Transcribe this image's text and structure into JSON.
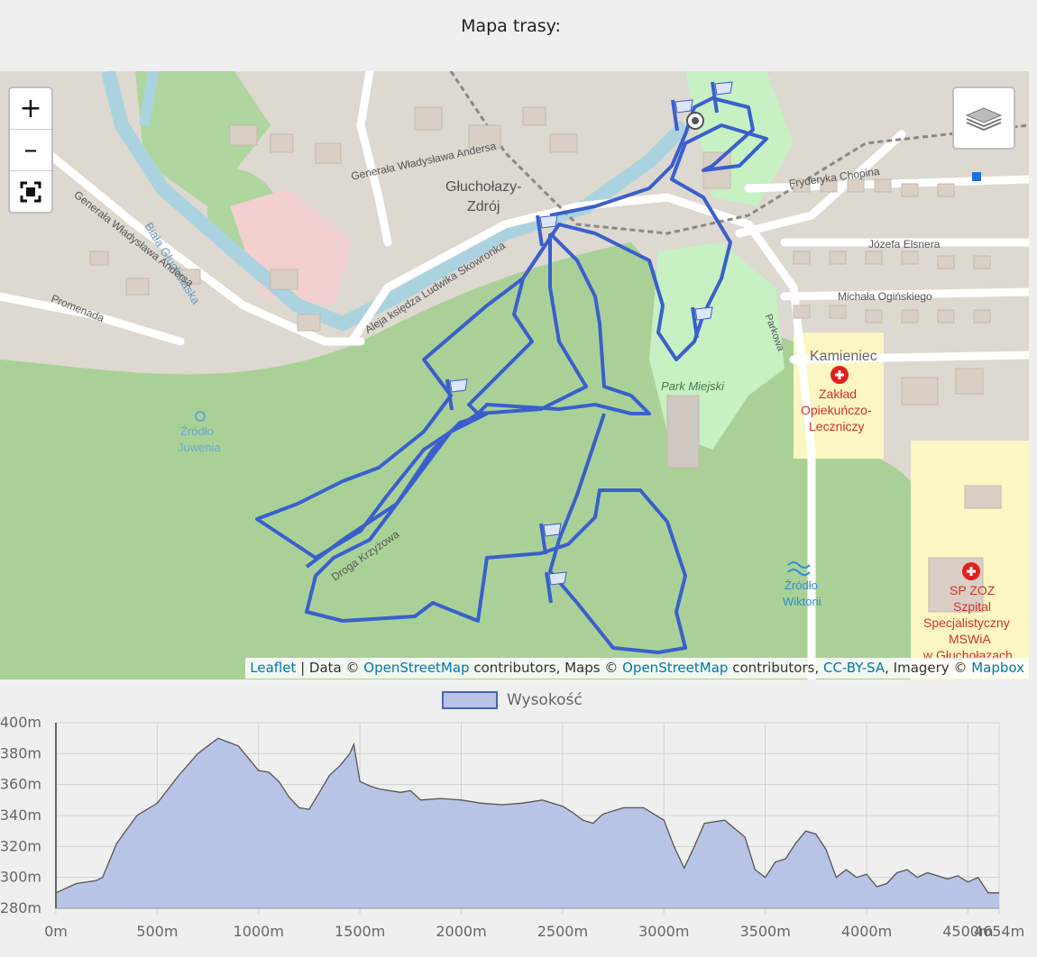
{
  "title": "Mapa trasy:",
  "map": {
    "controls": {
      "zoom_in": "+",
      "zoom_out": "–",
      "fullscreen_icon": "fullscreen-icon",
      "layers_icon": "layers-icon"
    },
    "labels": {
      "town": "Głuchołazy-",
      "town2": "Zdrój",
      "river": "Biała Głuchołaska",
      "park": "Park Miejski",
      "spring1": "Źródło",
      "spring1b": "Juwenia",
      "spring2": "Źródło",
      "spring2b": "Wiktorii",
      "kamieniec": "Kamieniec",
      "zaklad1": "Zakład",
      "zaklad2": "Opiekuńczo-",
      "zaklad3": "Leczniczy",
      "szpital1": "SP ZOZ",
      "szpital2": "Szpital",
      "szpital3": "Specjalistyczny",
      "szpital4": "MSWiA",
      "szpital5": "w Głuchołazach",
      "street1": "Generała Władysława Andersa",
      "street1b": "Generała Władysława Andersa",
      "street2": "Aleja księdza Ludwika Skowronka",
      "street3": "Fryderyka Chopina",
      "street4": "Józefa Elsnera",
      "street5": "Michała Ogińskiego",
      "street6": "Parkowa",
      "street7": "Promenada",
      "street8": "Droga Krzyżowa"
    },
    "attribution": {
      "leaflet": "Leaflet",
      "sep1": " | Data © ",
      "osm1": "OpenStreetMap",
      "mid": " contributors, Maps © ",
      "osm2": "OpenStreetMap",
      "mid2": " contributors, ",
      "license": "CC-BY-SA",
      "imagery": ", Imagery © ",
      "mapbox": "Mapbox"
    }
  },
  "colors": {
    "route": "#3a5fcd",
    "forest": "#a8d196",
    "elevation_fill": "#b7c4e6",
    "elevation_line": "#555"
  },
  "chart_data": {
    "type": "area",
    "legend": "Wysokość",
    "legend_position": "top",
    "ylim": [
      280,
      400
    ],
    "yticks": [
      "280m",
      "300m",
      "320m",
      "340m",
      "360m",
      "380m",
      "400m"
    ],
    "xlim": [
      0,
      4654
    ],
    "xticks": [
      "0m",
      "500m",
      "1000m",
      "1500m",
      "2000m",
      "2500m",
      "3000m",
      "3500m",
      "4000m",
      "4500m",
      "4654m"
    ],
    "grid": true,
    "series": [
      {
        "name": "Wysokość",
        "x": [
          0,
          100,
          200,
          230,
          300,
          400,
          500,
          600,
          700,
          800,
          900,
          1000,
          1050,
          1100,
          1150,
          1200,
          1250,
          1300,
          1350,
          1400,
          1450,
          1470,
          1500,
          1550,
          1600,
          1700,
          1750,
          1800,
          1900,
          2000,
          2100,
          2200,
          2300,
          2400,
          2500,
          2550,
          2600,
          2650,
          2700,
          2800,
          2900,
          3000,
          3050,
          3100,
          3150,
          3200,
          3300,
          3400,
          3450,
          3500,
          3550,
          3600,
          3650,
          3700,
          3750,
          3800,
          3850,
          3900,
          3950,
          4000,
          4050,
          4100,
          4150,
          4200,
          4250,
          4300,
          4350,
          4400,
          4450,
          4500,
          4550,
          4600,
          4654
        ],
        "y": [
          290,
          296,
          298,
          300,
          322,
          340,
          348,
          365,
          380,
          390,
          385,
          369,
          368,
          362,
          352,
          345,
          344,
          355,
          366,
          372,
          380,
          386,
          362,
          359,
          357,
          355,
          356,
          350,
          351,
          350,
          348,
          347,
          348,
          350,
          346,
          342,
          337,
          335,
          341,
          345,
          345,
          337,
          320,
          306,
          320,
          335,
          337,
          326,
          305,
          300,
          310,
          312,
          322,
          330,
          328,
          318,
          300,
          305,
          300,
          302,
          294,
          296,
          303,
          305,
          300,
          303,
          301,
          299,
          301,
          297,
          300,
          290,
          290
        ]
      }
    ],
    "xlabel": "",
    "ylabel": ""
  }
}
